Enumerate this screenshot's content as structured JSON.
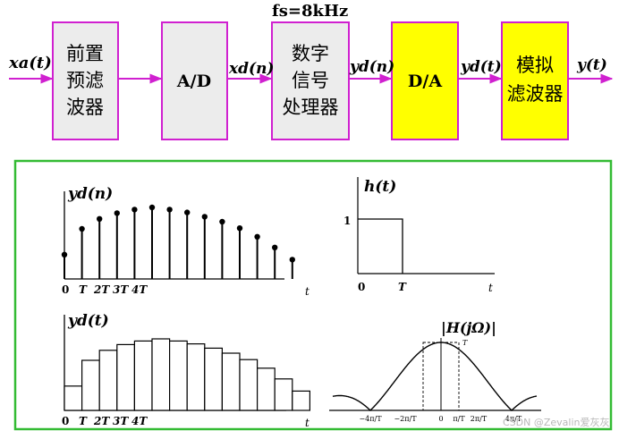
{
  "colors": {
    "block_border": "#d020d0",
    "arrow": "#d020d0",
    "block_fill_gray": "#ececec",
    "block_fill_yellow": "#ffff00",
    "panel_border": "#33bb33"
  },
  "pipeline": {
    "sampling_rate_label": "fs=8kHz",
    "blocks": [
      {
        "id": "prefilter",
        "lines": [
          "前置",
          "预滤",
          "波器"
        ],
        "fill": "gray"
      },
      {
        "id": "ad",
        "lines": [
          "A/D"
        ],
        "fill": "gray"
      },
      {
        "id": "dsp",
        "lines": [
          "数字",
          "信号",
          "处理器"
        ],
        "fill": "gray"
      },
      {
        "id": "da",
        "lines": [
          "D/A"
        ],
        "fill": "yellow"
      },
      {
        "id": "analog-filter",
        "lines": [
          "模拟",
          "滤波器"
        ],
        "fill": "yellow"
      }
    ],
    "signals": {
      "input": "xa(t)",
      "ad_out": "xd(n)",
      "dsp_out": "yd(n)",
      "da_out": "yd(t)",
      "output": "y(t)"
    }
  },
  "plots": {
    "discrete": {
      "ylabel": "yd(n)",
      "xlabel": "t",
      "ticks": [
        "0",
        "T",
        "2T",
        "3T",
        "4T"
      ],
      "values": [
        0.34,
        0.7,
        0.84,
        0.92,
        0.97,
        1.0,
        0.97,
        0.93,
        0.87,
        0.8,
        0.71,
        0.59,
        0.44,
        0.27
      ]
    },
    "impulse": {
      "ylabel": "h(t)",
      "xlabel": "t",
      "ytick": "1",
      "ticks": [
        "0",
        "T"
      ]
    },
    "staircase": {
      "ylabel": "yd(t)",
      "xlabel": "t",
      "ticks": [
        "0",
        "T",
        "2T",
        "3T",
        "4T"
      ]
    },
    "frequency": {
      "ylabel": "|H(jΩ)|",
      "peak_label": "T",
      "ticks": [
        "−4π/T",
        "−2π/T",
        "0",
        "π/T",
        "2π/T",
        "4π/T"
      ]
    }
  },
  "watermark": "CSDN @Zevalin爱灰灰"
}
